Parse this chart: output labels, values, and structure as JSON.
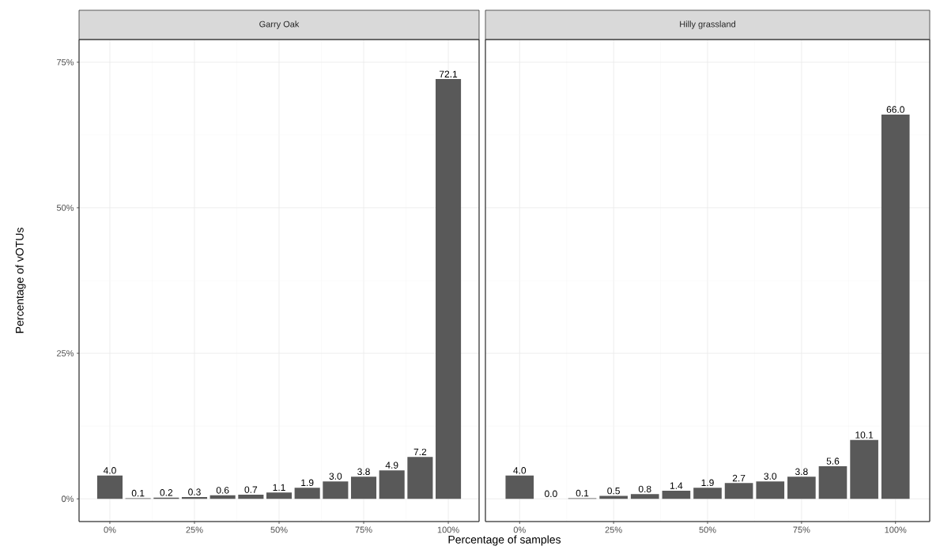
{
  "chart_data": [
    {
      "type": "bar",
      "title": "Garry Oak",
      "xlabel": "Percentage of samples",
      "ylabel": "Percentage of vOTUs",
      "color": "#595959",
      "grid": true,
      "x": [
        0,
        8.33,
        16.67,
        25,
        33.33,
        41.67,
        50,
        58.33,
        66.67,
        75,
        83.33,
        91.67,
        100
      ],
      "values": [
        4.0,
        0.1,
        0.2,
        0.3,
        0.6,
        0.7,
        1.1,
        1.9,
        3.0,
        3.8,
        4.9,
        7.2,
        72.1
      ],
      "value_labels": [
        "4.0",
        "0.1",
        "0.2",
        "0.3",
        "0.6",
        "0.7",
        "1.1",
        "1.9",
        "3.0",
        "3.8",
        "4.9",
        "7.2",
        "72.1"
      ],
      "xlim": [
        -9.1,
        109.1
      ],
      "ylim": [
        -3.9,
        78.9
      ],
      "xticks": [
        {
          "value": 0,
          "label": "0%"
        },
        {
          "value": 25,
          "label": "25%"
        },
        {
          "value": 50,
          "label": "50%"
        },
        {
          "value": 75,
          "label": "75%"
        },
        {
          "value": 100,
          "label": "100%"
        }
      ],
      "yticks": [
        {
          "value": 0,
          "label": "0%"
        },
        {
          "value": 25,
          "label": "25%"
        },
        {
          "value": 50,
          "label": "50%"
        },
        {
          "value": 75,
          "label": "75%"
        }
      ]
    },
    {
      "type": "bar",
      "title": "Hilly grassland",
      "color": "#595959",
      "grid": true,
      "tick_labels": "x",
      "x": [
        0,
        8.33,
        16.67,
        25,
        33.33,
        41.67,
        50,
        58.33,
        66.67,
        75,
        83.33,
        91.67,
        100
      ],
      "values": [
        4.0,
        0.0,
        0.1,
        0.5,
        0.8,
        1.4,
        1.9,
        2.7,
        3.0,
        3.8,
        5.6,
        10.1,
        66.0
      ],
      "value_labels": [
        "4.0",
        "0.0",
        "0.1",
        "0.5",
        "0.8",
        "1.4",
        "1.9",
        "2.7",
        "3.0",
        "3.8",
        "5.6",
        "10.1",
        "66.0"
      ],
      "xlim": [
        -9.1,
        109.1
      ],
      "ylim": [
        -3.9,
        78.9
      ],
      "xticks": [
        {
          "value": 0,
          "label": "0%"
        },
        {
          "value": 25,
          "label": "25%"
        },
        {
          "value": 50,
          "label": "50%"
        },
        {
          "value": 75,
          "label": "75%"
        },
        {
          "value": 100,
          "label": "100%"
        }
      ],
      "yticks": [
        {
          "value": 0,
          "label": null
        },
        {
          "value": 25,
          "label": null
        },
        {
          "value": 50,
          "label": null
        },
        {
          "value": 75,
          "label": null
        }
      ]
    }
  ]
}
